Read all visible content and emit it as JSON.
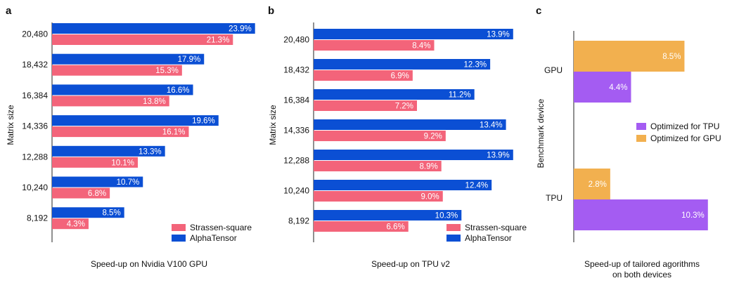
{
  "colors": {
    "alphatensor": "#0b4fd4",
    "strassen": "#f3647a",
    "optimized_tpu": "#a45cf2",
    "optimized_gpu": "#f2b04f",
    "axis": "#222222",
    "bar_label": "#ffffff"
  },
  "chart_data": [
    {
      "type": "bar",
      "orientation": "horizontal",
      "panel_letter": "a",
      "ylabel": "Matrix size",
      "xlabel": "Speed-up on Nvidia V100 GPU",
      "categories": [
        "20,480",
        "18,432",
        "16,384",
        "14,336",
        "12,288",
        "10,240",
        "8,192"
      ],
      "xlim": [
        0,
        25
      ],
      "legend_position": "bottom-right",
      "series": [
        {
          "name": "AlphaTensor",
          "color_key": "alphatensor",
          "values": [
            23.9,
            17.9,
            16.6,
            19.6,
            13.3,
            10.7,
            8.5
          ],
          "labels": [
            "23.9%",
            "17.9%",
            "16.6%",
            "19.6%",
            "13.3%",
            "10.7%",
            "8.5%"
          ]
        },
        {
          "name": "Strassen-square",
          "color_key": "strassen",
          "values": [
            21.3,
            15.3,
            13.8,
            16.1,
            10.1,
            6.8,
            4.3
          ],
          "labels": [
            "21.3%",
            "15.3%",
            "13.8%",
            "16.1%",
            "10.1%",
            "6.8%",
            "4.3%"
          ]
        }
      ],
      "legend": [
        {
          "name": "Strassen-square",
          "color_key": "strassen"
        },
        {
          "name": "AlphaTensor",
          "color_key": "alphatensor"
        }
      ]
    },
    {
      "type": "bar",
      "orientation": "horizontal",
      "panel_letter": "b",
      "ylabel": "Matrix size",
      "xlabel": "Speed-up on TPU v2",
      "categories": [
        "20,480",
        "18,432",
        "16,384",
        "14,336",
        "12,288",
        "10,240",
        "8,192"
      ],
      "xlim": [
        0,
        14.4
      ],
      "legend_position": "bottom-right",
      "series": [
        {
          "name": "AlphaTensor",
          "color_key": "alphatensor",
          "values": [
            13.9,
            12.3,
            11.2,
            13.4,
            13.9,
            12.4,
            10.3
          ],
          "labels": [
            "13.9%",
            "12.3%",
            "11.2%",
            "13.4%",
            "13.9%",
            "12.4%",
            "10.3%"
          ]
        },
        {
          "name": "Strassen-square",
          "color_key": "strassen",
          "values": [
            8.4,
            6.9,
            7.2,
            9.2,
            8.9,
            9.0,
            6.6
          ],
          "labels": [
            "8.4%",
            "6.9%",
            "7.2%",
            "9.2%",
            "8.9%",
            "9.0%",
            "6.6%"
          ]
        }
      ],
      "legend": [
        {
          "name": "Strassen-square",
          "color_key": "strassen"
        },
        {
          "name": "AlphaTensor",
          "color_key": "alphatensor"
        }
      ]
    },
    {
      "type": "bar",
      "orientation": "horizontal",
      "panel_letter": "c",
      "ylabel": "Benchmark device",
      "xlabel_lines": [
        "Speed-up of tailored agorithms",
        "on both devices"
      ],
      "categories": [
        "GPU",
        "TPU"
      ],
      "xlim": [
        0,
        11.5
      ],
      "legend_position": "center-right",
      "series": [
        {
          "name": "Optimized for GPU",
          "color_key": "optimized_gpu",
          "values": [
            8.5,
            2.8
          ],
          "labels": [
            "8.5%",
            "2.8%"
          ]
        },
        {
          "name": "Optimized for TPU",
          "color_key": "optimized_tpu",
          "values": [
            4.4,
            10.3
          ],
          "labels": [
            "4.4%",
            "10.3%"
          ]
        }
      ],
      "legend": [
        {
          "name": "Optimized for TPU",
          "color_key": "optimized_tpu"
        },
        {
          "name": "Optimized for GPU",
          "color_key": "optimized_gpu"
        }
      ]
    }
  ]
}
